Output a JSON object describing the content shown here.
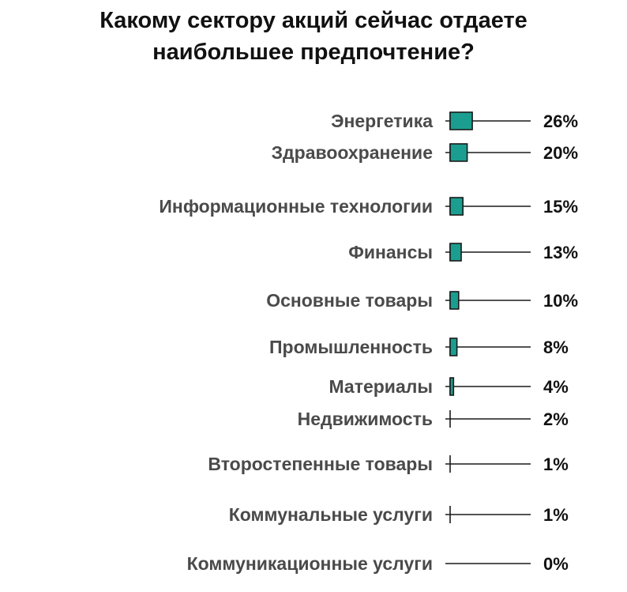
{
  "title_line1": "Какому сектору акций сейчас отдаете",
  "title_line2": "наибольшее предпочтение?",
  "chart_data": {
    "type": "bar",
    "title": "Какому сектору акций сейчас отдаете наибольшее предпочтение?",
    "categories": [
      "Энергетика",
      "Здравоохранение",
      "Информационные технологии",
      "Финансы",
      "Основные товары",
      "Промышленность",
      "Материалы",
      "Недвижимость",
      "Второстепенные товары",
      "Коммунальные услуги",
      "Коммуникационные услуги"
    ],
    "values": [
      26,
      20,
      15,
      13,
      10,
      8,
      4,
      2,
      1,
      1,
      0
    ],
    "value_labels": [
      "26%",
      "20%",
      "15%",
      "13%",
      "10%",
      "8%",
      "4%",
      "2%",
      "1%",
      "1%",
      "0%"
    ],
    "colors": {
      "bar_fill": "#1b9e8f",
      "bar_stroke": "#1a1a1a",
      "line": "#1a1a1a"
    }
  }
}
